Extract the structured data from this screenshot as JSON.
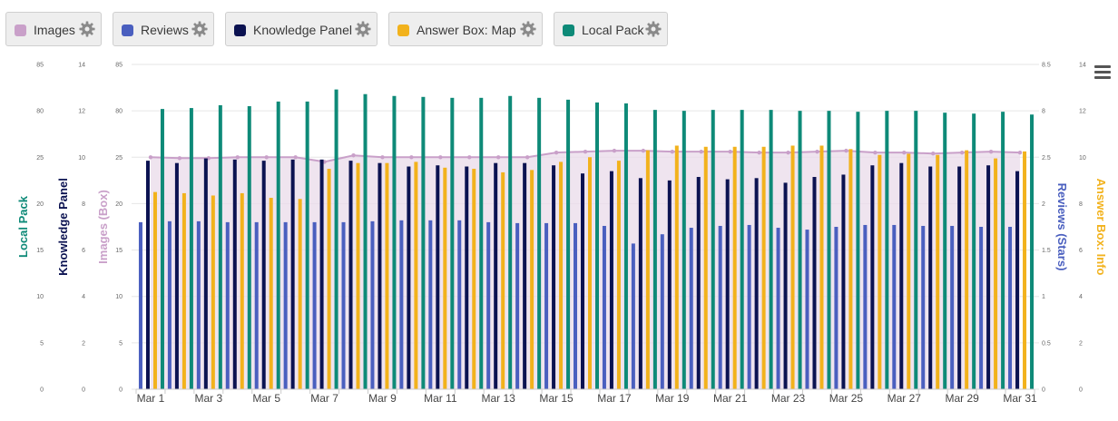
{
  "legend": {
    "items": [
      {
        "label": "Images",
        "color": "#c9a0c9",
        "icon": "gear-icon"
      },
      {
        "label": "Reviews",
        "color": "#4a5fbf",
        "icon": "gear-icon"
      },
      {
        "label": "Knowledge Panel",
        "color": "#0b1251",
        "icon": "gear-icon"
      },
      {
        "label": "Answer Box: Map",
        "color": "#f2b21c",
        "icon": "gear-icon"
      },
      {
        "label": "Local Pack",
        "color": "#0e8a78",
        "icon": "gear-icon"
      }
    ]
  },
  "menu": {
    "icon": "hamburger-menu-icon"
  },
  "chart_data": {
    "type": "bar",
    "x": [
      "Mar 1",
      "Mar 2",
      "Mar 3",
      "Mar 4",
      "Mar 5",
      "Mar 6",
      "Mar 7",
      "Mar 8",
      "Mar 9",
      "Mar 10",
      "Mar 11",
      "Mar 12",
      "Mar 13",
      "Mar 14",
      "Mar 15",
      "Mar 16",
      "Mar 17",
      "Mar 18",
      "Mar 19",
      "Mar 20",
      "Mar 21",
      "Mar 22",
      "Mar 23",
      "Mar 24",
      "Mar 25",
      "Mar 26",
      "Mar 27",
      "Mar 28",
      "Mar 29",
      "Mar 30",
      "Mar 31"
    ],
    "x_tick_labels": [
      "Mar 1",
      "Mar 3",
      "Mar 5",
      "Mar 7",
      "Mar 9",
      "Mar 11",
      "Mar 13",
      "Mar 15",
      "Mar 17",
      "Mar 19",
      "Mar 21",
      "Mar 23",
      "Mar 25",
      "Mar 27",
      "Mar 29",
      "Mar 31"
    ],
    "axes": {
      "local_pack": {
        "title": "Local Pack",
        "color": "#0e8a78",
        "ticks": [
          "0",
          "5",
          "10",
          "15",
          "20",
          "25",
          "80",
          "85"
        ],
        "range": [
          0,
          35
        ]
      },
      "knowledge_panel": {
        "title": "Knowledge Panel",
        "color": "#0b1251",
        "ticks": [
          "0",
          "2",
          "4",
          "6",
          "8",
          "10",
          "12",
          "14"
        ],
        "range": [
          0,
          14
        ]
      },
      "images": {
        "title": "Images (Box)",
        "color": "#c9a0c9",
        "ticks": [
          "0",
          "5",
          "10",
          "15",
          "20",
          "25",
          "80",
          "85"
        ],
        "range": [
          0,
          35
        ]
      },
      "reviews": {
        "title": "Reviews (Stars)",
        "color": "#4a5fbf",
        "ticks": [
          "0",
          "0.5",
          "1",
          "1.5",
          "2",
          "2.5",
          "8",
          "8.5"
        ],
        "range": [
          0,
          3.5
        ]
      },
      "answer_box": {
        "title": "Answer Box: Info",
        "color": "#f2b21c",
        "ticks": [
          "0",
          "2",
          "4",
          "6",
          "8",
          "10",
          "12",
          "14"
        ],
        "range": [
          0,
          14
        ]
      }
    },
    "series": [
      {
        "name": "Images",
        "type": "area",
        "axis": "images",
        "values": [
          25.0,
          24.9,
          24.9,
          25.0,
          25.0,
          25.0,
          24.5,
          25.2,
          25.0,
          25.0,
          25.0,
          25.0,
          25.0,
          25.0,
          25.5,
          25.6,
          25.7,
          25.7,
          25.6,
          25.6,
          25.6,
          25.5,
          25.5,
          25.6,
          25.7,
          25.5,
          25.5,
          25.4,
          25.5,
          25.6,
          25.5
        ]
      },
      {
        "name": "Reviews",
        "type": "bar",
        "axis": "reviews",
        "values": [
          1.8,
          1.81,
          1.81,
          1.8,
          1.8,
          1.8,
          1.8,
          1.8,
          1.81,
          1.82,
          1.82,
          1.82,
          1.8,
          1.79,
          1.79,
          1.79,
          1.76,
          1.57,
          1.67,
          1.74,
          1.76,
          1.77,
          1.74,
          1.72,
          1.75,
          1.77,
          1.77,
          1.76,
          1.76,
          1.75,
          1.75
        ]
      },
      {
        "name": "Knowledge Panel",
        "type": "bar",
        "axis": "knowledge_panel",
        "values": [
          9.85,
          9.75,
          9.95,
          9.9,
          9.85,
          9.9,
          9.9,
          9.85,
          9.75,
          9.6,
          9.65,
          9.6,
          9.75,
          9.75,
          9.65,
          9.3,
          9.4,
          9.1,
          9.0,
          9.15,
          9.05,
          9.1,
          8.9,
          9.15,
          9.25,
          9.65,
          9.75,
          9.6,
          9.6,
          9.65,
          9.4
        ]
      },
      {
        "name": "Answer Box: Map",
        "type": "bar",
        "axis": "answer_box",
        "values": [
          8.5,
          8.45,
          8.35,
          8.45,
          8.25,
          8.2,
          9.5,
          9.75,
          9.75,
          9.8,
          9.55,
          9.5,
          9.35,
          9.45,
          9.8,
          10.0,
          9.85,
          10.3,
          10.5,
          10.45,
          10.45,
          10.45,
          10.5,
          10.5,
          10.35,
          10.1,
          10.15,
          10.1,
          10.3,
          9.95,
          10.25
        ]
      },
      {
        "name": "Local Pack",
        "type": "bar",
        "axis": "local_pack",
        "values": [
          30.2,
          30.3,
          30.6,
          30.5,
          31.0,
          31.0,
          32.3,
          31.8,
          31.6,
          31.5,
          31.4,
          31.4,
          31.6,
          31.4,
          31.2,
          30.9,
          30.8,
          30.1,
          30.0,
          30.1,
          30.1,
          30.1,
          30.0,
          30.0,
          29.9,
          30.0,
          30.0,
          29.8,
          29.7,
          29.9,
          29.6
        ]
      }
    ]
  }
}
